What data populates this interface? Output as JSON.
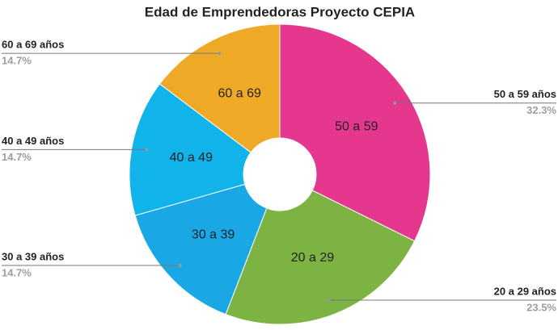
{
  "chart_data": {
    "type": "pie",
    "title": "Edad de Emprendedoras Proyecto CEPIA",
    "categories": [
      "50 a 59 años",
      "20 a 29 años",
      "30 a 39 años",
      "40 a 49 años",
      "60 a 69 años"
    ],
    "slice_labels": [
      "50 a 59",
      "20 a 29",
      "30 a 39",
      "40 a 49",
      "60 a 69"
    ],
    "values": [
      32.3,
      23.5,
      14.7,
      14.7,
      14.7
    ],
    "value_labels": [
      "32.3%",
      "23.5%",
      "14.7%",
      "14.7%",
      "14.7%"
    ],
    "colors": [
      "#e5378d",
      "#7cb342",
      "#1aa7e6",
      "#10b4ea",
      "#eeaa27"
    ],
    "donut": true
  }
}
